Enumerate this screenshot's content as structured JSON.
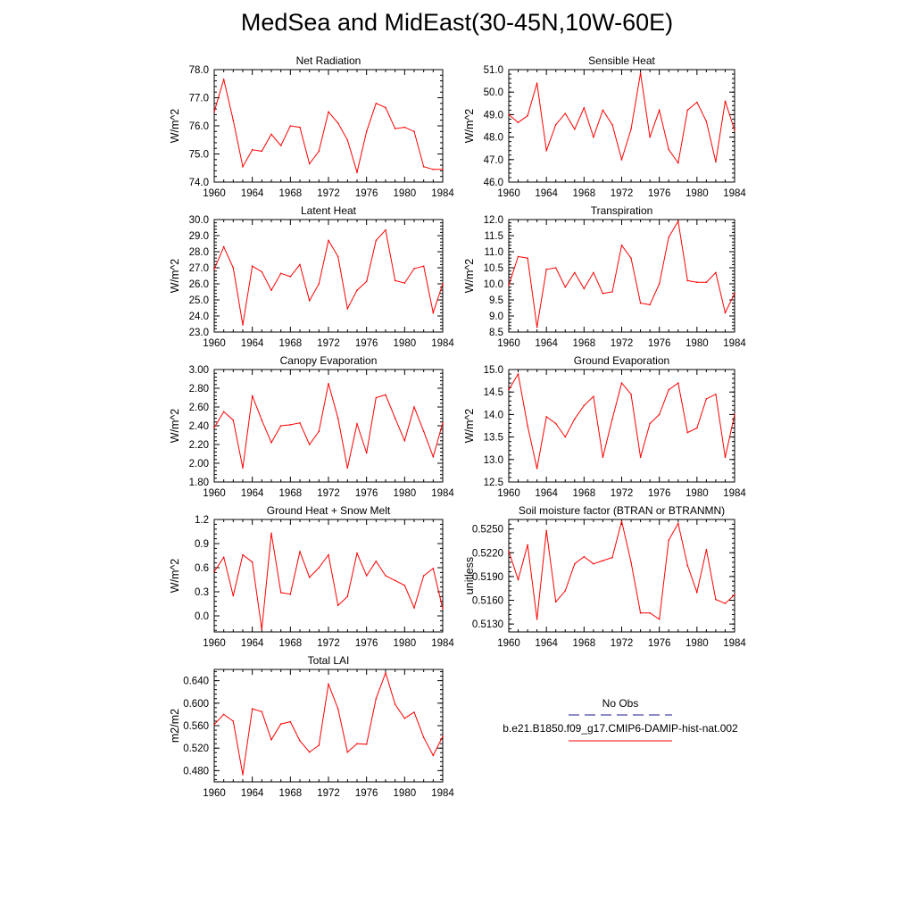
{
  "title": "MedSea and MidEast(30-45N,10W-60E)",
  "colors": {
    "model_line": "#ff0000",
    "obs_line": "#1a1a8c"
  },
  "legend": {
    "obs_label": "No Obs",
    "model_label": "b.e21.B1850.f09_g17.CMIP6-DAMIP-hist-nat.002"
  },
  "chart_data": [
    {
      "type": "line",
      "title": "Net Radiation",
      "ylabel": "W/m^2",
      "xlim": [
        1960,
        1984
      ],
      "ylim": [
        74.0,
        78.0
      ],
      "xticks": [
        "1960",
        "1964",
        "1968",
        "1972",
        "1976",
        "1980",
        "1984"
      ],
      "yticks": [
        "74.0",
        "75.0",
        "76.0",
        "77.0",
        "78.0"
      ],
      "x": [
        1960,
        1961,
        1962,
        1963,
        1964,
        1965,
        1966,
        1967,
        1968,
        1969,
        1970,
        1971,
        1972,
        1973,
        1974,
        1975,
        1976,
        1977,
        1978,
        1979,
        1980,
        1981,
        1982,
        1983,
        1984
      ],
      "series": [
        {
          "values": [
            76.5,
            77.65,
            76.2,
            74.55,
            75.15,
            75.1,
            75.7,
            75.3,
            76.0,
            75.95,
            74.65,
            75.1,
            76.5,
            76.1,
            75.5,
            74.35,
            75.8,
            76.8,
            76.65,
            75.9,
            75.95,
            75.8,
            74.55,
            74.45,
            74.45
          ]
        }
      ]
    },
    {
      "type": "line",
      "title": "Sensible Heat",
      "ylabel": "W/m^2",
      "xlim": [
        1960,
        1984
      ],
      "ylim": [
        46.0,
        51.0
      ],
      "xticks": [
        "1960",
        "1964",
        "1968",
        "1972",
        "1976",
        "1980",
        "1984"
      ],
      "yticks": [
        "46.0",
        "47.0",
        "48.0",
        "49.0",
        "50.0",
        "51.0"
      ],
      "x": [
        1960,
        1961,
        1962,
        1963,
        1964,
        1965,
        1966,
        1967,
        1968,
        1969,
        1970,
        1971,
        1972,
        1973,
        1974,
        1975,
        1976,
        1977,
        1978,
        1979,
        1980,
        1981,
        1982,
        1983,
        1984
      ],
      "series": [
        {
          "values": [
            49.0,
            48.65,
            48.95,
            50.4,
            47.4,
            48.55,
            49.05,
            48.35,
            49.3,
            48.0,
            49.2,
            48.55,
            47.0,
            48.35,
            50.85,
            48.0,
            49.2,
            47.45,
            46.85,
            49.2,
            49.55,
            48.7,
            46.9,
            49.6,
            48.3
          ]
        }
      ]
    },
    {
      "type": "line",
      "title": "Latent Heat",
      "ylabel": "W/m^2",
      "xlim": [
        1960,
        1984
      ],
      "ylim": [
        23.0,
        30.0
      ],
      "xticks": [
        "1960",
        "1964",
        "1968",
        "1972",
        "1976",
        "1980",
        "1984"
      ],
      "yticks": [
        "23.0",
        "24.0",
        "25.0",
        "26.0",
        "27.0",
        "28.0",
        "29.0",
        "30.0"
      ],
      "x": [
        1960,
        1961,
        1962,
        1963,
        1964,
        1965,
        1966,
        1967,
        1968,
        1969,
        1970,
        1971,
        1972,
        1973,
        1974,
        1975,
        1976,
        1977,
        1978,
        1979,
        1980,
        1981,
        1982,
        1983,
        1984
      ],
      "series": [
        {
          "values": [
            26.9,
            28.3,
            27.0,
            23.45,
            27.1,
            26.75,
            25.6,
            26.65,
            26.45,
            27.2,
            24.95,
            26.0,
            28.7,
            27.7,
            24.45,
            25.6,
            26.15,
            28.7,
            29.35,
            26.2,
            26.05,
            26.95,
            27.1,
            24.2,
            26.0
          ]
        }
      ]
    },
    {
      "type": "line",
      "title": "Transpiration",
      "ylabel": "W/m^2",
      "xlim": [
        1960,
        1984
      ],
      "ylim": [
        8.5,
        12.0
      ],
      "xticks": [
        "1960",
        "1964",
        "1968",
        "1972",
        "1976",
        "1980",
        "1984"
      ],
      "yticks": [
        "8.5",
        "9.0",
        "9.5",
        "10.0",
        "10.5",
        "11.0",
        "11.5",
        "12.0"
      ],
      "x": [
        1960,
        1961,
        1962,
        1963,
        1964,
        1965,
        1966,
        1967,
        1968,
        1969,
        1970,
        1971,
        1972,
        1973,
        1974,
        1975,
        1976,
        1977,
        1978,
        1979,
        1980,
        1981,
        1982,
        1983,
        1984
      ],
      "series": [
        {
          "values": [
            9.95,
            10.85,
            10.8,
            8.65,
            10.45,
            10.5,
            9.9,
            10.35,
            9.85,
            10.35,
            9.7,
            9.75,
            11.2,
            10.8,
            9.4,
            9.35,
            10.0,
            11.45,
            11.95,
            10.1,
            10.05,
            10.05,
            10.35,
            9.1,
            9.7
          ]
        }
      ]
    },
    {
      "type": "line",
      "title": "Canopy Evaporation",
      "ylabel": "W/m^2",
      "xlim": [
        1960,
        1984
      ],
      "ylim": [
        1.8,
        3.0
      ],
      "xticks": [
        "1960",
        "1964",
        "1968",
        "1972",
        "1976",
        "1980",
        "1984"
      ],
      "yticks": [
        "1.80",
        "2.00",
        "2.20",
        "2.40",
        "2.60",
        "2.80",
        "3.00"
      ],
      "x": [
        1960,
        1961,
        1962,
        1963,
        1964,
        1965,
        1966,
        1967,
        1968,
        1969,
        1970,
        1971,
        1972,
        1973,
        1974,
        1975,
        1976,
        1977,
        1978,
        1979,
        1980,
        1981,
        1982,
        1983,
        1984
      ],
      "series": [
        {
          "values": [
            2.38,
            2.55,
            2.46,
            1.95,
            2.72,
            2.46,
            2.22,
            2.4,
            2.41,
            2.43,
            2.2,
            2.34,
            2.85,
            2.48,
            1.95,
            2.42,
            2.11,
            2.7,
            2.73,
            2.48,
            2.24,
            2.6,
            2.34,
            2.07,
            2.43
          ]
        }
      ]
    },
    {
      "type": "line",
      "title": "Ground Evaporation",
      "ylabel": "W/m^2",
      "xlim": [
        1960,
        1984
      ],
      "ylim": [
        12.5,
        15.0
      ],
      "xticks": [
        "1960",
        "1964",
        "1968",
        "1972",
        "1976",
        "1980",
        "1984"
      ],
      "yticks": [
        "12.5",
        "13.0",
        "13.5",
        "14.0",
        "14.5",
        "15.0"
      ],
      "x": [
        1960,
        1961,
        1962,
        1963,
        1964,
        1965,
        1966,
        1967,
        1968,
        1969,
        1970,
        1971,
        1972,
        1973,
        1974,
        1975,
        1976,
        1977,
        1978,
        1979,
        1980,
        1981,
        1982,
        1983,
        1984
      ],
      "series": [
        {
          "values": [
            14.55,
            14.9,
            13.75,
            12.8,
            13.95,
            13.8,
            13.5,
            13.9,
            14.2,
            14.4,
            13.05,
            13.9,
            14.7,
            14.45,
            13.05,
            13.8,
            14.0,
            14.55,
            14.7,
            13.6,
            13.7,
            14.35,
            14.45,
            13.05,
            14.0
          ]
        }
      ]
    },
    {
      "type": "line",
      "title": "Ground Heat + Snow Melt",
      "ylabel": "W/m^2",
      "xlim": [
        1960,
        1984
      ],
      "ylim": [
        -0.2,
        1.2
      ],
      "xticks": [
        "1960",
        "1964",
        "1968",
        "1972",
        "1976",
        "1980",
        "1984"
      ],
      "yticks": [
        "0.0",
        "0.3",
        "0.6",
        "0.9",
        "1.2"
      ],
      "ytick_values": [
        0.0,
        0.3,
        0.6,
        0.9,
        1.2
      ],
      "x": [
        1960,
        1961,
        1962,
        1963,
        1964,
        1965,
        1966,
        1967,
        1968,
        1969,
        1970,
        1971,
        1972,
        1973,
        1974,
        1975,
        1976,
        1977,
        1978,
        1979,
        1980,
        1981,
        1982,
        1983,
        1984
      ],
      "series": [
        {
          "values": [
            0.55,
            0.73,
            0.25,
            0.76,
            0.67,
            -0.17,
            1.03,
            0.29,
            0.27,
            0.8,
            0.48,
            0.6,
            0.76,
            0.13,
            0.24,
            0.78,
            0.5,
            0.68,
            0.5,
            0.44,
            0.38,
            0.1,
            0.5,
            0.59,
            0.09
          ]
        }
      ]
    },
    {
      "type": "line",
      "title": "Soil moisture factor (BTRAN or BTRANMN)",
      "ylabel": "unitless",
      "xlim": [
        1960,
        1984
      ],
      "ylim": [
        0.512,
        0.5262
      ],
      "xticks": [
        "1960",
        "1964",
        "1968",
        "1972",
        "1976",
        "1980",
        "1984"
      ],
      "yticks": [
        "0.5130",
        "0.5160",
        "0.5190",
        "0.5220",
        "0.5250"
      ],
      "ytick_values": [
        0.513,
        0.516,
        0.519,
        0.522,
        0.525
      ],
      "x": [
        1960,
        1961,
        1962,
        1963,
        1964,
        1965,
        1966,
        1967,
        1968,
        1969,
        1970,
        1971,
        1972,
        1973,
        1974,
        1975,
        1976,
        1977,
        1978,
        1979,
        1980,
        1981,
        1982,
        1983,
        1984
      ],
      "series": [
        {
          "values": [
            0.5222,
            0.5186,
            0.523,
            0.5136,
            0.5248,
            0.5158,
            0.5172,
            0.5206,
            0.5215,
            0.5206,
            0.521,
            0.5214,
            0.526,
            0.5208,
            0.5144,
            0.5144,
            0.5136,
            0.5236,
            0.5257,
            0.5204,
            0.517,
            0.5224,
            0.5161,
            0.5156,
            0.5167
          ]
        }
      ]
    },
    {
      "type": "line",
      "title": "Total LAI",
      "ylabel": "m2/m2",
      "xlim": [
        1960,
        1984
      ],
      "ylim": [
        0.46,
        0.66
      ],
      "xticks": [
        "1960",
        "1964",
        "1968",
        "1972",
        "1976",
        "1980",
        "1984"
      ],
      "yticks": [
        "0.480",
        "0.520",
        "0.560",
        "0.600",
        "0.640"
      ],
      "ytick_values": [
        0.48,
        0.52,
        0.56,
        0.6,
        0.64
      ],
      "x": [
        1960,
        1961,
        1962,
        1963,
        1964,
        1965,
        1966,
        1967,
        1968,
        1969,
        1970,
        1971,
        1972,
        1973,
        1974,
        1975,
        1976,
        1977,
        1978,
        1979,
        1980,
        1981,
        1982,
        1983,
        1984
      ],
      "series": [
        {
          "values": [
            0.562,
            0.58,
            0.568,
            0.473,
            0.59,
            0.585,
            0.535,
            0.563,
            0.567,
            0.533,
            0.513,
            0.525,
            0.634,
            0.59,
            0.513,
            0.528,
            0.527,
            0.608,
            0.654,
            0.598,
            0.573,
            0.584,
            0.539,
            0.507,
            0.541
          ]
        }
      ]
    }
  ]
}
